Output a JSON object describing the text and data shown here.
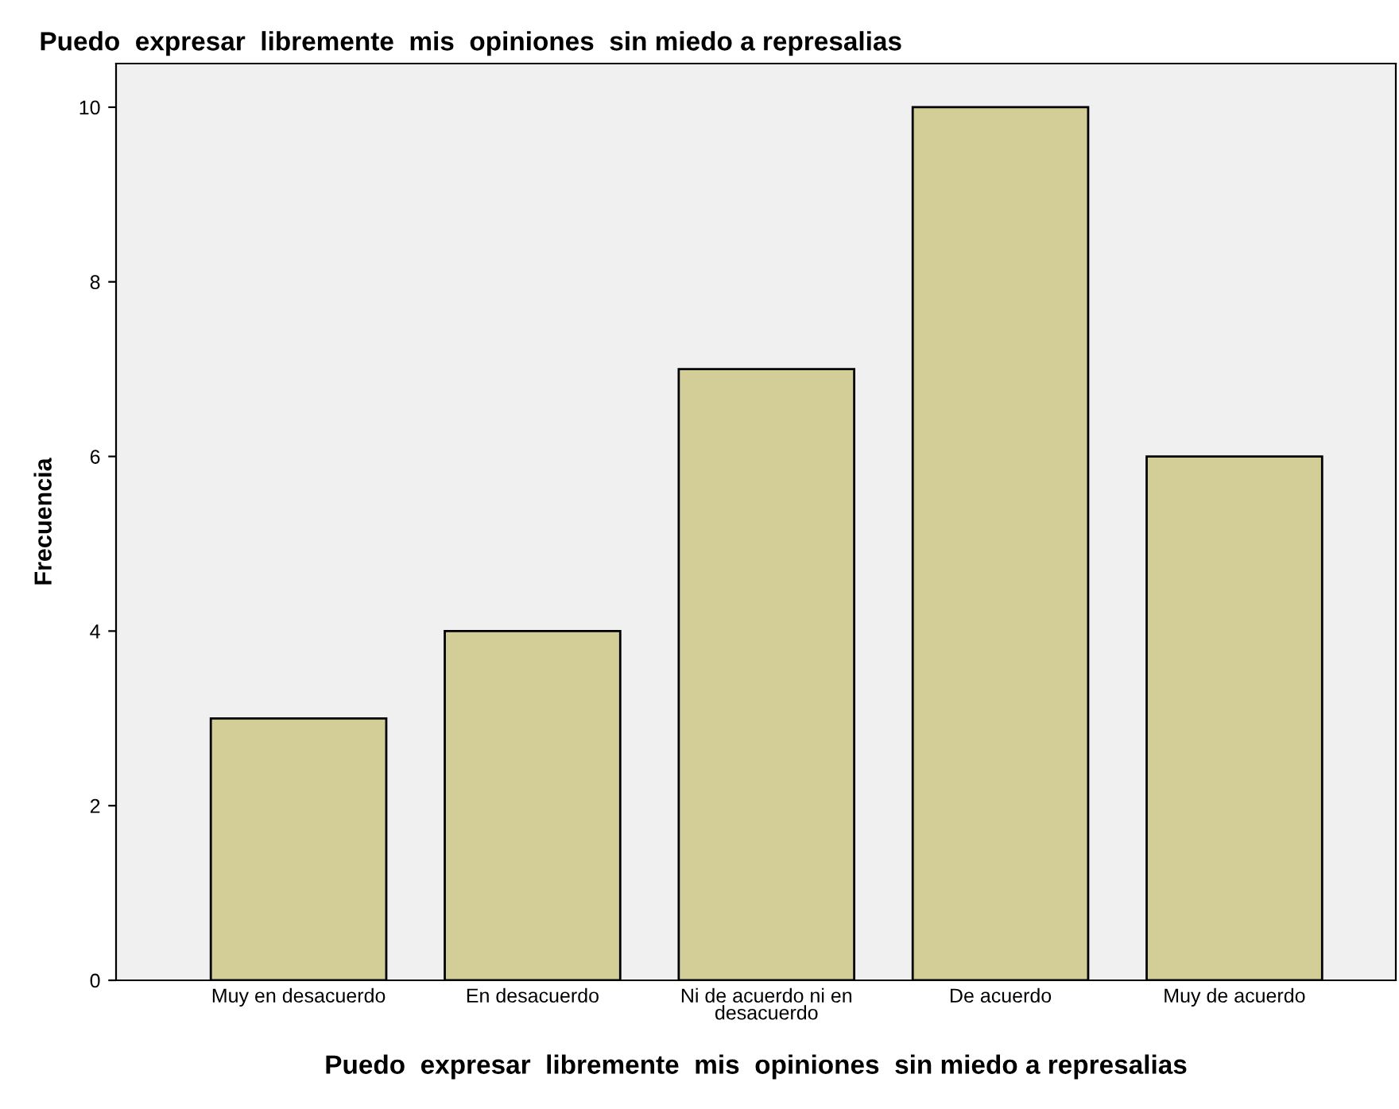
{
  "chart_data": {
    "type": "bar",
    "title": "Puedo  expresar  libremente  mis  opiniones  sin miedo a represalias",
    "xlabel": "Puedo  expresar  libremente  mis  opiniones  sin miedo a represalias",
    "ylabel": "Frecuencia",
    "categories": [
      "Muy en desacuerdo",
      "En desacuerdo",
      "Ni de acuerdo ni en\ndesacuerdo",
      "De acuerdo",
      "Muy de acuerdo"
    ],
    "values": [
      3,
      4,
      7,
      10,
      6
    ],
    "color": "#d3ce97",
    "ylim": [
      0,
      10.5
    ],
    "yticks": [
      0,
      2,
      4,
      6,
      8,
      10
    ],
    "grid": false,
    "legend": false
  }
}
